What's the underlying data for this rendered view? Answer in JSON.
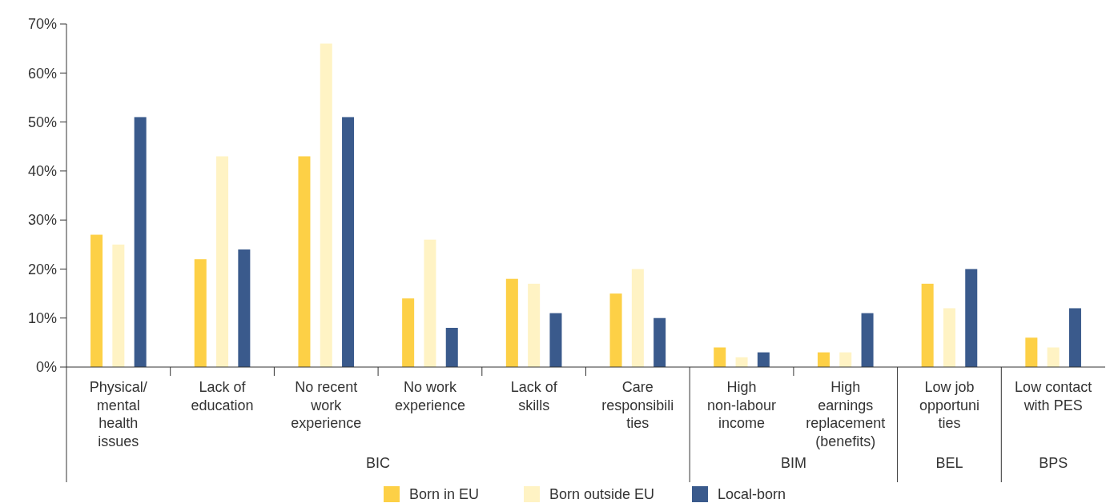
{
  "chart_data": {
    "type": "bar",
    "categories": [
      "Physical/\nmental\nhealth\nissues",
      "Lack of\neducation",
      "No recent\nwork\nexperience",
      "No work\nexperience",
      "Lack of\nskills",
      "Care\nresponsibili\nties",
      "High\nnon-labour\nincome",
      "High\nearnings\nreplacement\n(benefits)",
      "Low job\nopportuni\nties",
      "Low contact\nwith PES"
    ],
    "annotations": [
      "BIC",
      "BIM",
      "BEL",
      "BPS"
    ],
    "series": [
      {
        "name": "Born in EU",
        "color": "#fdd046",
        "values": [
          27,
          22,
          43,
          14,
          18,
          15,
          4,
          3,
          17,
          6
        ]
      },
      {
        "name": "Born outside EU",
        "color": "#fff3c4",
        "values": [
          25,
          43,
          66,
          26,
          17,
          20,
          2,
          3,
          12,
          4
        ]
      },
      {
        "name": "Local-born",
        "color": "#3a5a8c",
        "values": [
          51,
          24,
          51,
          8,
          11,
          10,
          3,
          11,
          20,
          12
        ]
      }
    ],
    "ylim": [
      0,
      70
    ],
    "yticks": [
      {
        "value": 0,
        "label": "0%"
      },
      {
        "value": 10,
        "label": "10%"
      },
      {
        "value": 20,
        "label": "20%"
      },
      {
        "value": 30,
        "label": "30%"
      },
      {
        "value": 40,
        "label": "40%"
      },
      {
        "value": 50,
        "label": "50%"
      },
      {
        "value": 60,
        "label": "60%"
      },
      {
        "value": 70,
        "label": "70%"
      }
    ],
    "legend": "bottom"
  }
}
